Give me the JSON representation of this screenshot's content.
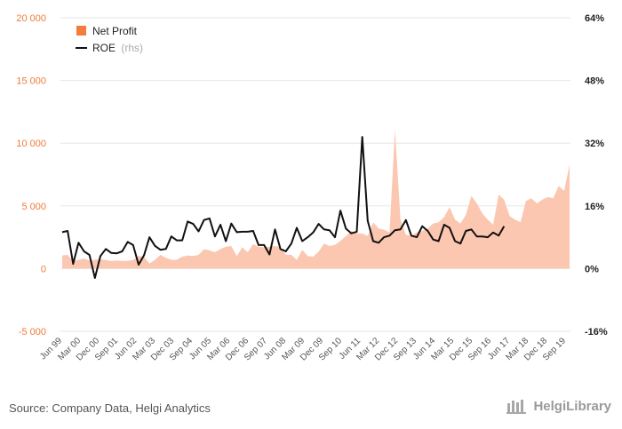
{
  "chart_data": {
    "type": "line",
    "title": "",
    "xlabel": "",
    "ylabel": "",
    "ylim": [
      -5000,
      20000
    ],
    "y2lim": [
      -0.16,
      0.64
    ],
    "left_ticks": [
      {
        "value": 20000,
        "label": "20 000"
      },
      {
        "value": 15000,
        "label": "15 000"
      },
      {
        "value": 10000,
        "label": "10 000"
      },
      {
        "value": 5000,
        "label": "5 000"
      },
      {
        "value": 0,
        "label": "0"
      },
      {
        "value": -5000,
        "label": "-5 000"
      }
    ],
    "right_ticks": [
      {
        "value": 0.64,
        "label": "64%"
      },
      {
        "value": 0.48,
        "label": "48%"
      },
      {
        "value": 0.32,
        "label": "32%"
      },
      {
        "value": 0.16,
        "label": "16%"
      },
      {
        "value": 0.0,
        "label": "0%"
      },
      {
        "value": -0.16,
        "label": "-16%"
      }
    ],
    "x_tick_labels": [
      "Jun 99",
      "Mar 00",
      "Dec 00",
      "Sep 01",
      "Jun 02",
      "Mar 03",
      "Dec 03",
      "Sep 04",
      "Jun 05",
      "Mar 06",
      "Dec 06",
      "Sep 07",
      "Jun 08",
      "Mar 09",
      "Dec 09",
      "Sep 10",
      "Jun 11",
      "Mar 12",
      "Dec 12",
      "Sep 13",
      "Jun 14",
      "Mar 15",
      "Dec 15",
      "Sep 16",
      "Jun 17",
      "Mar 18",
      "Dec 18",
      "Sep 19"
    ],
    "series": [
      {
        "name": "Net Profit",
        "axis": "left",
        "style": "area",
        "values": [
          1050,
          1100,
          600,
          700,
          800,
          650,
          700,
          750,
          680,
          600,
          650,
          600,
          620,
          680,
          1000,
          950,
          400,
          700,
          1100,
          850,
          700,
          700,
          950,
          1050,
          1000,
          1100,
          1550,
          1450,
          1300,
          1550,
          1750,
          1800,
          1000,
          1700,
          1300,
          1950,
          1750,
          1700,
          1750,
          1800,
          1700,
          1100,
          1100,
          700,
          1500,
          1000,
          950,
          1350,
          2000,
          1800,
          1900,
          2200,
          2600,
          3000,
          2800,
          2800,
          2600,
          3700,
          3200,
          3100,
          2900,
          11100,
          3900,
          2700,
          2600,
          2900,
          3000,
          3200,
          3600,
          3700,
          4100,
          4900,
          3900,
          3600,
          4300,
          5800,
          5200,
          4400,
          3900,
          3500,
          5900,
          5500,
          4200,
          3900,
          3700,
          5400,
          5600,
          5200,
          5500,
          5700,
          5600,
          6600,
          6200,
          8300
        ]
      },
      {
        "name": "ROE",
        "axis": "right",
        "style": "line",
        "values": [
          0.093,
          0.096,
          0.012,
          0.066,
          0.044,
          0.035,
          -0.024,
          0.032,
          0.05,
          0.04,
          0.039,
          0.044,
          0.068,
          0.06,
          0.01,
          0.034,
          0.08,
          0.058,
          0.048,
          0.05,
          0.082,
          0.072,
          0.072,
          0.12,
          0.114,
          0.095,
          0.124,
          0.128,
          0.082,
          0.112,
          0.07,
          0.115,
          0.093,
          0.094,
          0.094,
          0.096,
          0.06,
          0.06,
          0.036,
          0.1,
          0.05,
          0.044,
          0.064,
          0.104,
          0.07,
          0.08,
          0.092,
          0.114,
          0.1,
          0.098,
          0.08,
          0.148,
          0.102,
          0.09,
          0.094,
          0.336,
          0.122,
          0.07,
          0.066,
          0.08,
          0.084,
          0.098,
          0.1,
          0.124,
          0.084,
          0.08,
          0.108,
          0.096,
          0.074,
          0.07,
          0.112,
          0.104,
          0.07,
          0.064,
          0.096,
          0.1,
          0.082,
          0.082,
          0.08,
          0.092,
          0.084,
          0.108
        ]
      }
    ],
    "legend": {
      "position": "top-left"
    }
  },
  "legend": {
    "net_profit_label": "Net Profit",
    "roe_label": "ROE",
    "roe_suffix": "(rhs)"
  },
  "footer": {
    "source": "Source: Company Data, Helgi Analytics",
    "logo_text": "HelgiLibrary"
  },
  "colors": {
    "area_fill": "#fcc7b0",
    "area_legend": "#f47c3c",
    "roe_line": "#111111",
    "grid": "#e6e6e6",
    "left_tick": "#f07a3a"
  }
}
